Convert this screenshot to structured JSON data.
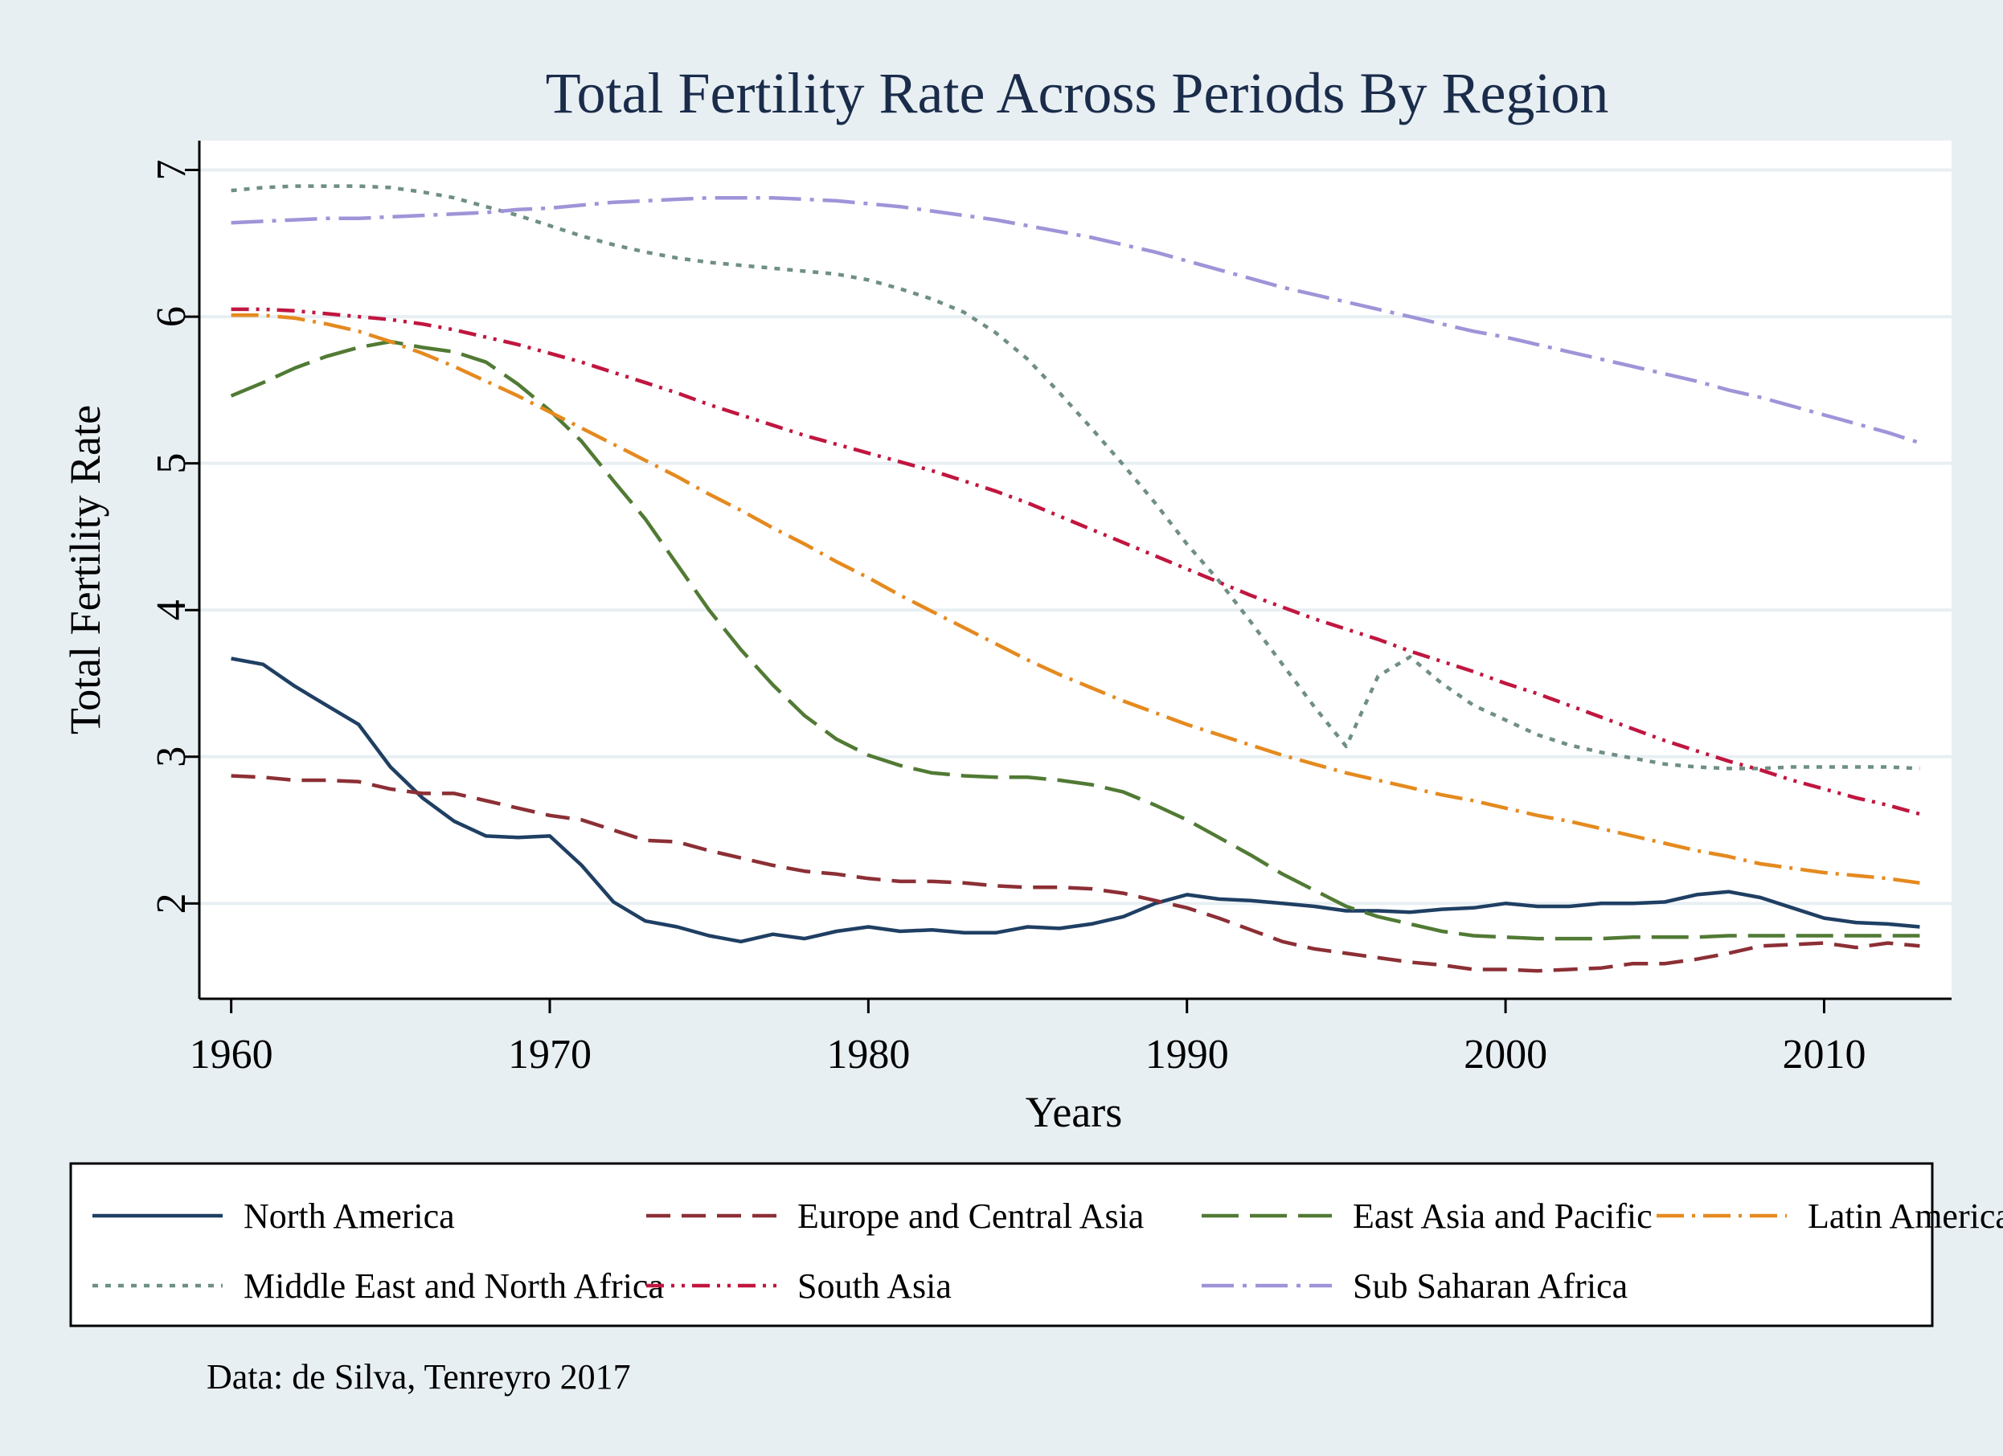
{
  "chart_data": {
    "type": "line",
    "title": "Total Fertility Rate Across Periods By Region",
    "xlabel": "Years",
    "ylabel": "Total Fertility Rate",
    "xlim": [
      1959,
      2014
    ],
    "ylim": [
      1.35,
      7.2
    ],
    "xticks": [
      1960,
      1970,
      1980,
      1990,
      2000,
      2010
    ],
    "yticks": [
      2,
      3,
      4,
      5,
      6,
      7
    ],
    "grid": true,
    "legend_position": "bottom",
    "note": "Data: de Silva, Tenreyro 2017",
    "x": [
      1960,
      1961,
      1962,
      1963,
      1964,
      1965,
      1966,
      1967,
      1968,
      1969,
      1970,
      1971,
      1972,
      1973,
      1974,
      1975,
      1976,
      1977,
      1978,
      1979,
      1980,
      1981,
      1982,
      1983,
      1984,
      1985,
      1986,
      1987,
      1988,
      1989,
      1990,
      1991,
      1992,
      1993,
      1994,
      1995,
      1996,
      1997,
      1998,
      1999,
      2000,
      2001,
      2002,
      2003,
      2004,
      2005,
      2006,
      2007,
      2008,
      2009,
      2010,
      2011,
      2012,
      2013
    ],
    "series": [
      {
        "name": "North America",
        "color": "#1f3f63",
        "dash": "solid",
        "values": [
          3.67,
          3.63,
          3.48,
          3.35,
          3.22,
          2.93,
          2.72,
          2.56,
          2.46,
          2.45,
          2.46,
          2.26,
          2.01,
          1.88,
          1.84,
          1.78,
          1.74,
          1.79,
          1.76,
          1.81,
          1.84,
          1.81,
          1.82,
          1.8,
          1.8,
          1.84,
          1.83,
          1.86,
          1.91,
          2.0,
          2.06,
          2.03,
          2.02,
          2.0,
          1.98,
          1.95,
          1.95,
          1.94,
          1.96,
          1.97,
          2.0,
          1.98,
          1.98,
          2.0,
          2.0,
          2.01,
          2.06,
          2.08,
          2.04,
          1.97,
          1.9,
          1.87,
          1.86,
          1.84
        ]
      },
      {
        "name": "Europe and Central Asia",
        "color": "#8c2f35",
        "dash": "longdash",
        "values": [
          2.87,
          2.86,
          2.84,
          2.84,
          2.83,
          2.78,
          2.75,
          2.75,
          2.7,
          2.65,
          2.6,
          2.57,
          2.5,
          2.43,
          2.42,
          2.36,
          2.31,
          2.26,
          2.22,
          2.2,
          2.17,
          2.15,
          2.15,
          2.14,
          2.12,
          2.11,
          2.11,
          2.1,
          2.07,
          2.02,
          1.97,
          1.9,
          1.82,
          1.74,
          1.69,
          1.66,
          1.63,
          1.6,
          1.58,
          1.55,
          1.55,
          1.54,
          1.55,
          1.56,
          1.59,
          1.59,
          1.62,
          1.66,
          1.71,
          1.72,
          1.73,
          1.7,
          1.73,
          1.71
        ]
      },
      {
        "name": "East Asia and Pacific",
        "color": "#517a34",
        "dash": "dash",
        "values": [
          5.46,
          5.55,
          5.65,
          5.73,
          5.79,
          5.83,
          5.79,
          5.76,
          5.69,
          5.54,
          5.36,
          5.15,
          4.88,
          4.62,
          4.31,
          4.0,
          3.73,
          3.49,
          3.28,
          3.12,
          3.01,
          2.94,
          2.89,
          2.87,
          2.86,
          2.86,
          2.84,
          2.81,
          2.76,
          2.67,
          2.57,
          2.45,
          2.33,
          2.2,
          2.09,
          1.98,
          1.91,
          1.86,
          1.81,
          1.78,
          1.77,
          1.76,
          1.76,
          1.76,
          1.77,
          1.77,
          1.77,
          1.78,
          1.78,
          1.78,
          1.78,
          1.78,
          1.78,
          1.78
        ]
      },
      {
        "name": "Latin America",
        "color": "#e58a1f",
        "dash": "dashdot",
        "values": [
          6.01,
          6.01,
          5.99,
          5.95,
          5.9,
          5.83,
          5.75,
          5.66,
          5.56,
          5.46,
          5.35,
          5.24,
          5.13,
          5.02,
          4.91,
          4.79,
          4.68,
          4.56,
          4.45,
          4.33,
          4.22,
          4.1,
          3.99,
          3.88,
          3.77,
          3.66,
          3.56,
          3.47,
          3.38,
          3.3,
          3.22,
          3.15,
          3.08,
          3.01,
          2.95,
          2.89,
          2.84,
          2.79,
          2.74,
          2.7,
          2.65,
          2.6,
          2.56,
          2.51,
          2.46,
          2.41,
          2.36,
          2.32,
          2.27,
          2.24,
          2.21,
          2.19,
          2.17,
          2.14
        ]
      },
      {
        "name": "Middle East and North Africa",
        "color": "#6f8f84",
        "dash": "dot",
        "values": [
          6.86,
          6.88,
          6.89,
          6.89,
          6.89,
          6.88,
          6.85,
          6.81,
          6.75,
          6.69,
          6.62,
          6.55,
          6.49,
          6.44,
          6.4,
          6.37,
          6.35,
          6.33,
          6.31,
          6.29,
          6.25,
          6.19,
          6.12,
          6.03,
          5.89,
          5.71,
          5.48,
          5.24,
          4.99,
          4.73,
          4.45,
          4.2,
          3.92,
          3.63,
          3.34,
          3.07,
          3.55,
          3.68,
          3.5,
          3.35,
          3.25,
          3.15,
          3.08,
          3.03,
          2.99,
          2.95,
          2.93,
          2.92,
          2.92,
          2.93,
          2.93,
          2.93,
          2.93,
          2.92
        ]
      },
      {
        "name": "South Asia",
        "color": "#c0163f",
        "dash": "dashdotdot",
        "values": [
          6.05,
          6.05,
          6.04,
          6.02,
          6.0,
          5.98,
          5.95,
          5.91,
          5.86,
          5.81,
          5.75,
          5.69,
          5.62,
          5.55,
          5.48,
          5.4,
          5.33,
          5.26,
          5.19,
          5.13,
          5.07,
          5.01,
          4.95,
          4.88,
          4.81,
          4.73,
          4.64,
          4.55,
          4.46,
          4.37,
          4.28,
          4.19,
          4.1,
          4.02,
          3.94,
          3.87,
          3.8,
          3.72,
          3.65,
          3.58,
          3.5,
          3.43,
          3.35,
          3.27,
          3.19,
          3.11,
          3.04,
          2.97,
          2.91,
          2.84,
          2.78,
          2.72,
          2.67,
          2.61
        ]
      },
      {
        "name": "Sub Saharan Africa",
        "color": "#9f94d8",
        "dash": "longdashdot",
        "values": [
          6.64,
          6.65,
          6.66,
          6.67,
          6.67,
          6.68,
          6.69,
          6.7,
          6.71,
          6.73,
          6.74,
          6.76,
          6.78,
          6.79,
          6.8,
          6.81,
          6.81,
          6.81,
          6.8,
          6.79,
          6.77,
          6.75,
          6.72,
          6.69,
          6.66,
          6.62,
          6.58,
          6.54,
          6.49,
          6.44,
          6.38,
          6.32,
          6.26,
          6.2,
          6.15,
          6.1,
          6.05,
          6.0,
          5.95,
          5.9,
          5.86,
          5.81,
          5.76,
          5.71,
          5.66,
          5.61,
          5.56,
          5.5,
          5.45,
          5.39,
          5.33,
          5.27,
          5.21,
          5.14
        ]
      }
    ]
  }
}
